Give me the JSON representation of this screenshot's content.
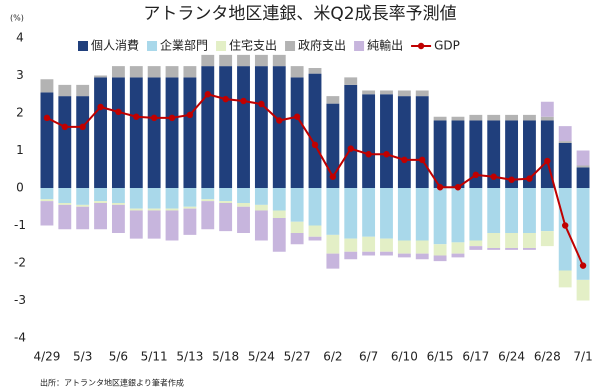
{
  "chart_data": {
    "type": "stacked-bar-line",
    "title": "アトランタ地区連銀、米Q2成長率予測値",
    "y_unit_label": "(%)",
    "source": "出所：アトランタ地区連銀より筆者作成",
    "categories": [
      "4/29",
      null,
      "5/3",
      null,
      "5/6",
      null,
      "5/11",
      null,
      "5/13",
      null,
      "5/18",
      null,
      "5/24",
      null,
      "5/27",
      null,
      "6/2",
      null,
      "6/7",
      null,
      "6/10",
      null,
      "6/15",
      null,
      "6/17",
      null,
      "6/24",
      null,
      "6/28",
      null,
      "7/1"
    ],
    "series": [
      {
        "name": "個人消費",
        "color": "#203f7c",
        "kind": "bar",
        "values": [
          2.55,
          2.45,
          2.45,
          2.95,
          2.95,
          2.95,
          2.95,
          2.95,
          2.95,
          3.25,
          3.25,
          3.25,
          3.25,
          3.25,
          2.95,
          3.05,
          2.25,
          2.75,
          2.5,
          2.5,
          2.45,
          2.45,
          1.8,
          1.8,
          1.8,
          1.8,
          1.8,
          1.8,
          1.8,
          1.2,
          0.55
        ]
      },
      {
        "name": "企業部門",
        "color": "#a9d8ea",
        "kind": "bar",
        "values": [
          -0.3,
          -0.4,
          -0.45,
          -0.35,
          -0.4,
          -0.55,
          -0.55,
          -0.55,
          -0.5,
          -0.3,
          -0.35,
          -0.4,
          -0.45,
          -0.6,
          -0.9,
          -1.0,
          -1.25,
          -1.35,
          -1.3,
          -1.35,
          -1.4,
          -1.4,
          -1.5,
          -1.45,
          -1.4,
          -1.2,
          -1.2,
          -1.2,
          -1.15,
          -2.2,
          -2.45
        ]
      },
      {
        "name": "住宅支出",
        "color": "#e3efc6",
        "kind": "bar",
        "values": [
          -0.05,
          -0.05,
          -0.05,
          -0.05,
          -0.05,
          -0.05,
          -0.05,
          -0.05,
          -0.05,
          -0.05,
          -0.05,
          -0.1,
          -0.15,
          -0.2,
          -0.3,
          -0.3,
          -0.5,
          -0.35,
          -0.4,
          -0.35,
          -0.35,
          -0.35,
          -0.3,
          -0.3,
          -0.15,
          -0.4,
          -0.4,
          -0.4,
          -0.4,
          -0.45,
          -0.55
        ]
      },
      {
        "name": "政府支出",
        "color": "#b3b3b3",
        "kind": "bar",
        "values": [
          0.35,
          0.3,
          0.3,
          0.05,
          0.3,
          0.3,
          0.3,
          0.3,
          0.3,
          0.3,
          0.3,
          0.3,
          0.3,
          0.3,
          0.3,
          0.15,
          0.2,
          0.2,
          0.1,
          0.1,
          0.15,
          0.15,
          0.1,
          0.1,
          0.15,
          0.15,
          0.15,
          0.15,
          0.1,
          0.05,
          0.05
        ]
      },
      {
        "name": "純輸出",
        "color": "#c7b5dd",
        "kind": "bar",
        "values": [
          -0.65,
          -0.65,
          -0.6,
          -0.7,
          -0.75,
          -0.75,
          -0.75,
          -0.8,
          -0.7,
          -0.75,
          -0.75,
          -0.7,
          -0.8,
          -0.9,
          -0.3,
          -0.1,
          -0.4,
          -0.2,
          -0.1,
          -0.1,
          -0.1,
          -0.15,
          -0.15,
          -0.1,
          -0.1,
          -0.05,
          -0.05,
          -0.05,
          0.4,
          0.4,
          0.4
        ]
      },
      {
        "name": "GDP",
        "color": "#c00000",
        "kind": "line",
        "values": [
          1.87,
          1.63,
          1.63,
          2.16,
          2.03,
          1.9,
          1.87,
          1.87,
          1.95,
          2.5,
          2.37,
          2.32,
          2.24,
          1.8,
          1.9,
          1.15,
          0.3,
          1.05,
          0.9,
          0.9,
          0.75,
          0.75,
          0.02,
          0.02,
          0.35,
          0.3,
          0.22,
          0.25,
          0.72,
          -1.0,
          -2.07
        ]
      }
    ],
    "ylim": [
      -4,
      4
    ],
    "yticks": [
      -4,
      -3,
      -2,
      -1,
      0,
      1,
      2,
      3,
      4
    ],
    "grid": false
  }
}
